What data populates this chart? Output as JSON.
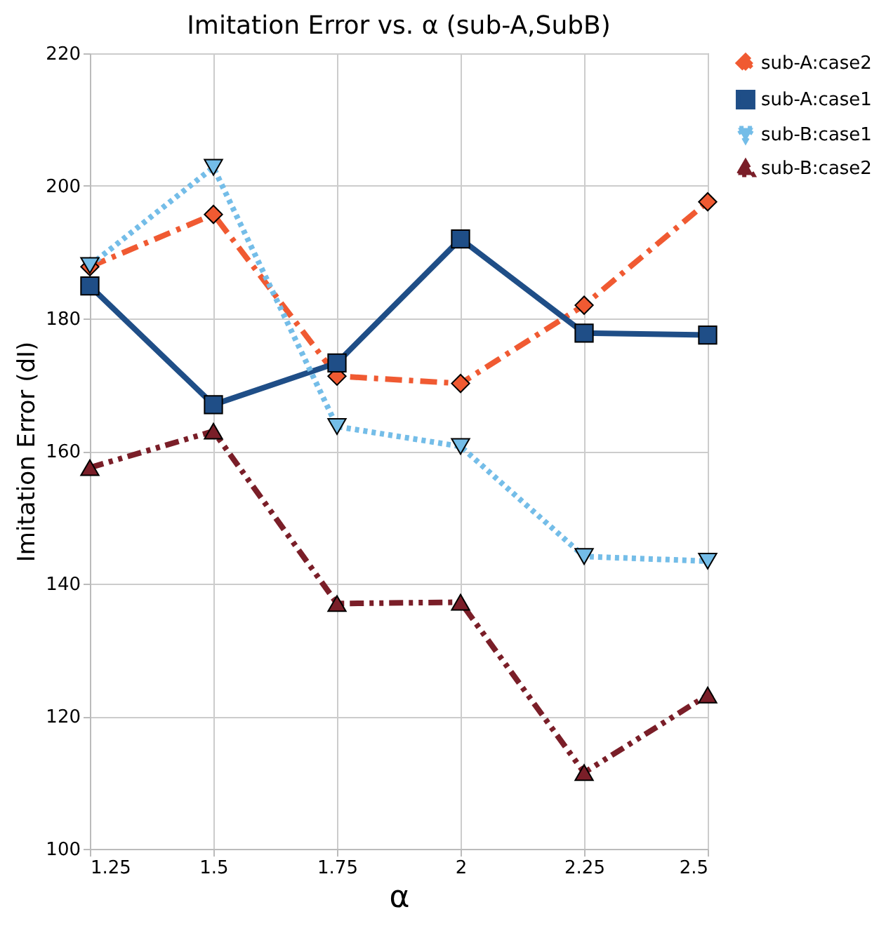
{
  "chart_data": {
    "type": "line",
    "title": "Imitation Error vs. α (sub-A,SubB)",
    "xlabel": "α",
    "ylabel": "Imitation Error (dI)",
    "x": [
      1.25,
      1.5,
      1.75,
      2,
      2.25,
      2.5
    ],
    "xlim": [
      1.25,
      2.5
    ],
    "xticks": [
      1.25,
      1.5,
      1.75,
      2,
      2.25,
      2.5
    ],
    "ylim": [
      100,
      220
    ],
    "yticks": [
      100,
      120,
      140,
      160,
      180,
      200,
      220
    ],
    "grid": true,
    "legend": "right",
    "series": [
      {
        "name": "sub-A:case2",
        "color": "#f05a32",
        "line_style": "dashdot",
        "marker": "diamond",
        "values": [
          187.8,
          195.7,
          171.3,
          170.2,
          182.0,
          197.6
        ]
      },
      {
        "name": "sub-A:case1",
        "color": "#1f4e87",
        "line_style": "solid",
        "marker": "square",
        "values": [
          184.9,
          167.0,
          173.3,
          192.0,
          177.8,
          177.5
        ]
      },
      {
        "name": "sub-B:case1",
        "color": "#74bde8",
        "line_style": "dotted",
        "marker": "triangle-down",
        "values": [
          188.0,
          202.8,
          163.7,
          160.7,
          144.1,
          143.4
        ]
      },
      {
        "name": "sub-B:case2",
        "color": "#7a1e28",
        "line_style": "dashdotdot",
        "marker": "triangle-up",
        "values": [
          157.5,
          163.0,
          137.0,
          137.2,
          111.5,
          123.2
        ]
      }
    ]
  }
}
